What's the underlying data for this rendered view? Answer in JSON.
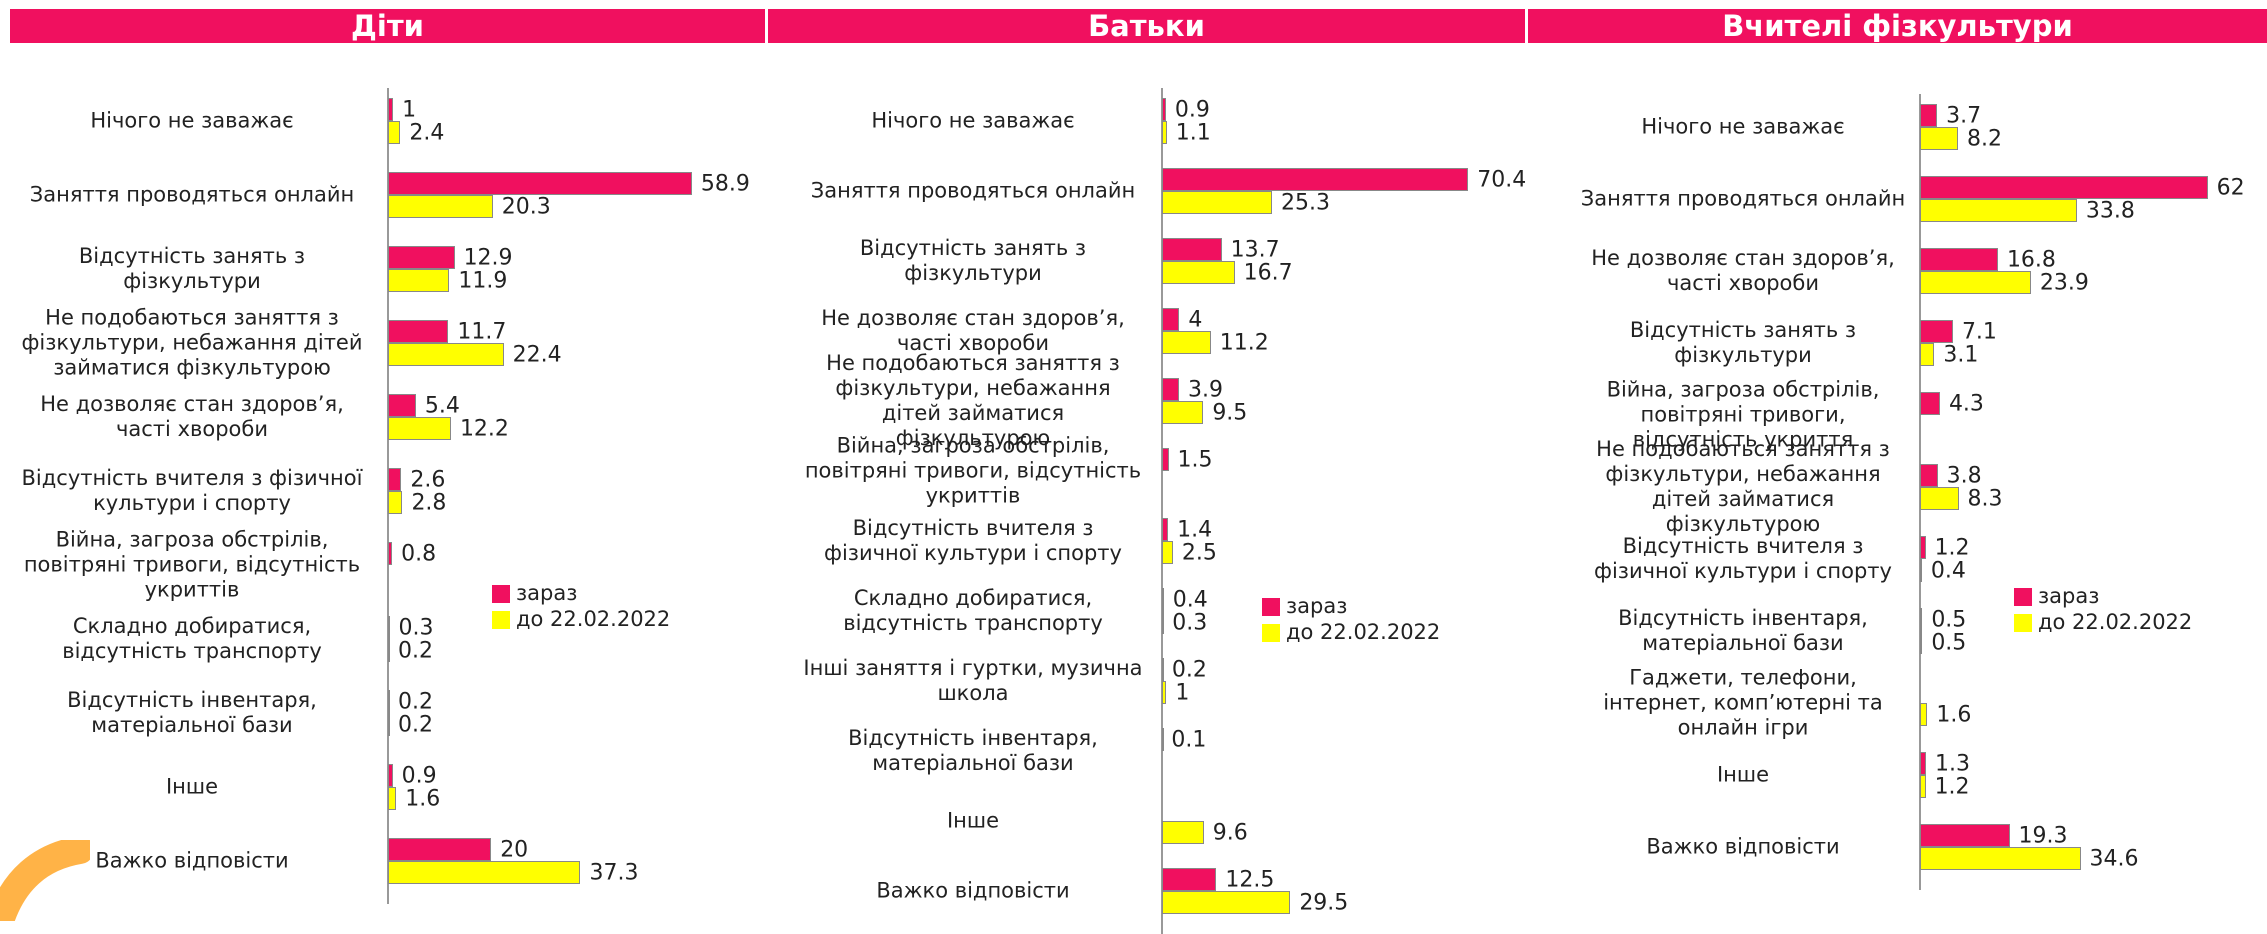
{
  "chart_data": [
    {
      "type": "bar",
      "orientation": "horizontal",
      "title": "Діти",
      "categories": [
        "Нічого не заважає",
        "Заняття проводяться онлайн",
        "Відсутність занять з фізкультури",
        "Не подобаються заняття з фізкультури, небажання дітей займатися фізкультурою",
        "Не дозволяє стан здоров’я, часті хвороби",
        "Відсутність вчителя з фізичної культури і спорту",
        "Війна, загроза обстрілів, повітряні тривоги, відсутність укриттів",
        "Складно добиратися, відсутність транспорту",
        "Відсутність інвентаря, матеріальної бази",
        "Інше",
        "Важко відповісти"
      ],
      "series": [
        {
          "name": "зараз",
          "color": "#f0105f",
          "values": [
            1,
            58.9,
            12.9,
            11.7,
            5.4,
            2.6,
            0.8,
            0.3,
            0.2,
            0.9,
            20
          ]
        },
        {
          "name": "до 22.02.2022",
          "color": "#ffff00",
          "values": [
            2.4,
            20.3,
            11.9,
            22.4,
            12.2,
            2.8,
            null,
            0.2,
            0.2,
            1.6,
            37.3
          ]
        }
      ]
    },
    {
      "type": "bar",
      "orientation": "horizontal",
      "title": "Батьки",
      "categories": [
        "Нічого не заважає",
        "Заняття проводяться онлайн",
        "Відсутність занять з фізкультури",
        "Не дозволяє стан здоров’я, часті хвороби",
        "Не подобаються заняття з фізкультури, небажання дітей займатися фізкультурою",
        "Війна, загроза обстрілів, повітряні тривоги, відсутність укриттів",
        "Відсутність вчителя з фізичної культури і спорту",
        "Складно добиратися, відсутність транспорту",
        "Інші заняття і гуртки, музична школа",
        "Відсутність інвентаря, матеріальної бази",
        "Інше",
        "Важко відповісти"
      ],
      "series": [
        {
          "name": "зараз",
          "color": "#f0105f",
          "values": [
            0.9,
            70.4,
            13.7,
            4,
            3.9,
            1.5,
            1.4,
            0.4,
            0.2,
            0.1,
            null,
            12.5
          ]
        },
        {
          "name": "до 22.02.2022",
          "color": "#ffff00",
          "values": [
            1.1,
            25.3,
            16.7,
            11.2,
            9.5,
            null,
            2.5,
            0.3,
            1,
            null,
            9.6,
            29.5
          ]
        }
      ]
    },
    {
      "type": "bar",
      "orientation": "horizontal",
      "title": "Вчителі фізкультури",
      "categories": [
        "Нічого не заважає",
        "Заняття проводяться онлайн",
        "Не дозволяє стан здоров’я, часті хвороби",
        "Відсутність занять з фізкультури",
        "Війна, загроза обстрілів, повітряні тривоги, відсутність укриття",
        "Не подобаються заняття з фізкультури, небажання дітей займатися фізкультурою",
        "Відсутність вчителя з фізичної культури і спорту",
        "Відсутність інвентаря, матеріальної бази",
        "Гаджети, телефони, інтернет, комп’ютерні та онлайн ігри",
        "Інше",
        "Важко відповісти"
      ],
      "series": [
        {
          "name": "зараз",
          "color": "#f0105f",
          "values": [
            3.7,
            62,
            16.8,
            7.1,
            4.3,
            3.8,
            1.2,
            0.5,
            null,
            1.3,
            19.3
          ]
        },
        {
          "name": "до 22.02.2022",
          "color": "#ffff00",
          "values": [
            8.2,
            33.8,
            23.9,
            3.1,
            null,
            8.3,
            0.4,
            0.5,
            1.6,
            1.2,
            34.6
          ]
        }
      ]
    }
  ]
}
